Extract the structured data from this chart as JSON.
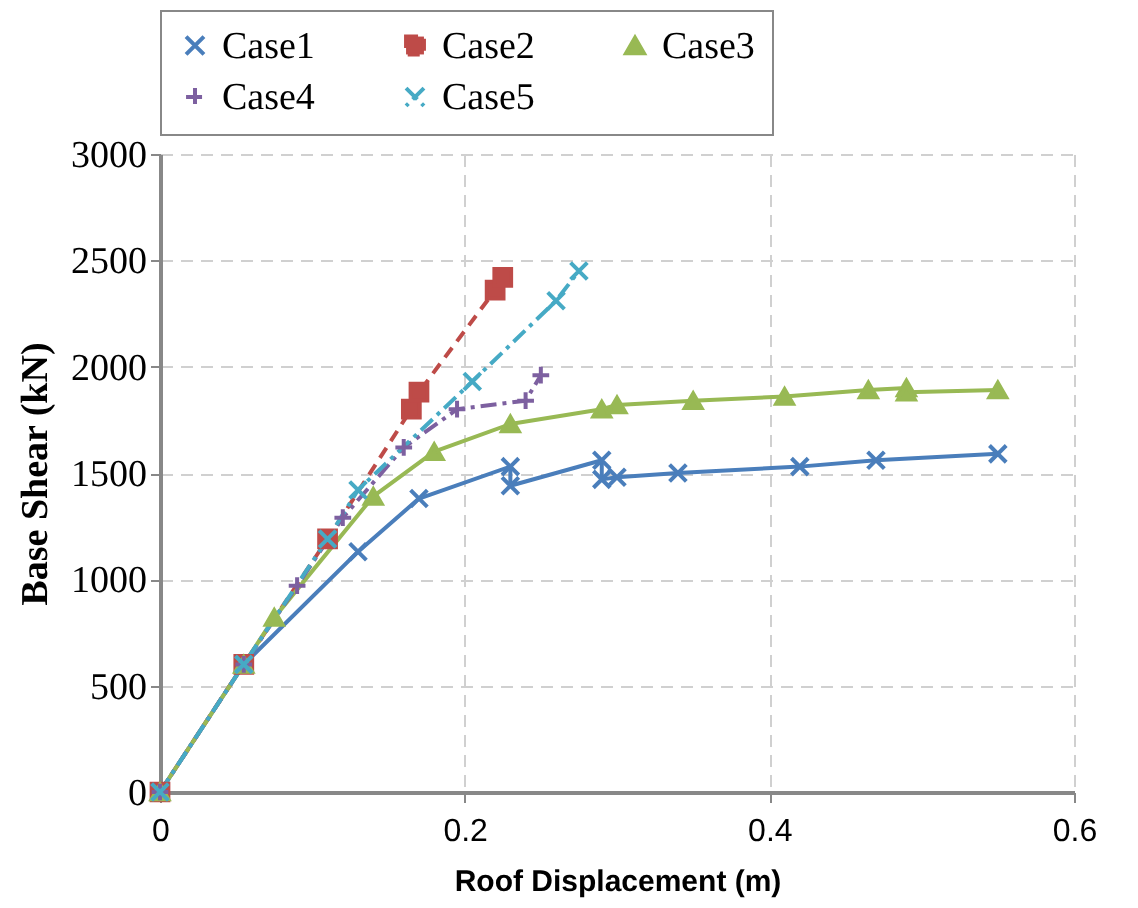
{
  "chart_data": {
    "type": "line",
    "xlabel": "Roof Displacement  (m)",
    "ylabel": "Base Shear  (kN)",
    "xlim": [
      0,
      0.6
    ],
    "xticks": [
      0,
      0.2,
      0.4,
      0.6
    ],
    "ylim": [
      0,
      3000
    ],
    "yticks": [
      0,
      500,
      1000,
      1500,
      2000,
      2500,
      3000
    ],
    "grid": true,
    "legend": "top",
    "series": [
      {
        "name": "Case1",
        "color": "#4a7ebb",
        "marker": "cross",
        "line_style": "solid",
        "x": [
          0,
          0.055,
          0.13,
          0.17,
          0.23,
          0.23,
          0.29,
          0.29,
          0.3,
          0.34,
          0.42,
          0.47,
          0.55
        ],
        "values": [
          0,
          600,
          1130,
          1380,
          1530,
          1440,
          1560,
          1470,
          1480,
          1500,
          1530,
          1560,
          1590
        ]
      },
      {
        "name": "Case2",
        "color": "#be4b48",
        "marker": "square",
        "line_style": "dashed",
        "x": [
          0,
          0.055,
          0.11,
          0.165,
          0.17,
          0.22,
          0.225
        ],
        "values": [
          0,
          600,
          1190,
          1800,
          1880,
          2360,
          2420
        ]
      },
      {
        "name": "Case3",
        "color": "#98b954",
        "marker": "triangle",
        "line_style": "solid",
        "x": [
          0,
          0.055,
          0.075,
          0.14,
          0.18,
          0.23,
          0.29,
          0.3,
          0.35,
          0.41,
          0.465,
          0.49,
          0.49,
          0.55
        ],
        "values": [
          0,
          600,
          820,
          1390,
          1600,
          1730,
          1800,
          1820,
          1840,
          1860,
          1890,
          1900,
          1880,
          1890
        ]
      },
      {
        "name": "Case4",
        "color": "#7d60a0",
        "marker": "plus",
        "line_style": "dashdot",
        "x": [
          0,
          0.055,
          0.09,
          0.12,
          0.16,
          0.195,
          0.24,
          0.25
        ],
        "values": [
          0,
          600,
          970,
          1290,
          1620,
          1800,
          1840,
          1960
        ]
      },
      {
        "name": "Case5",
        "color": "#46aac5",
        "marker": "cross",
        "line_style": "dashdot",
        "x": [
          0,
          0.055,
          0.11,
          0.13,
          0.205,
          0.26,
          0.275
        ],
        "values": [
          0,
          600,
          1190,
          1420,
          1930,
          2310,
          2450
        ]
      }
    ]
  }
}
